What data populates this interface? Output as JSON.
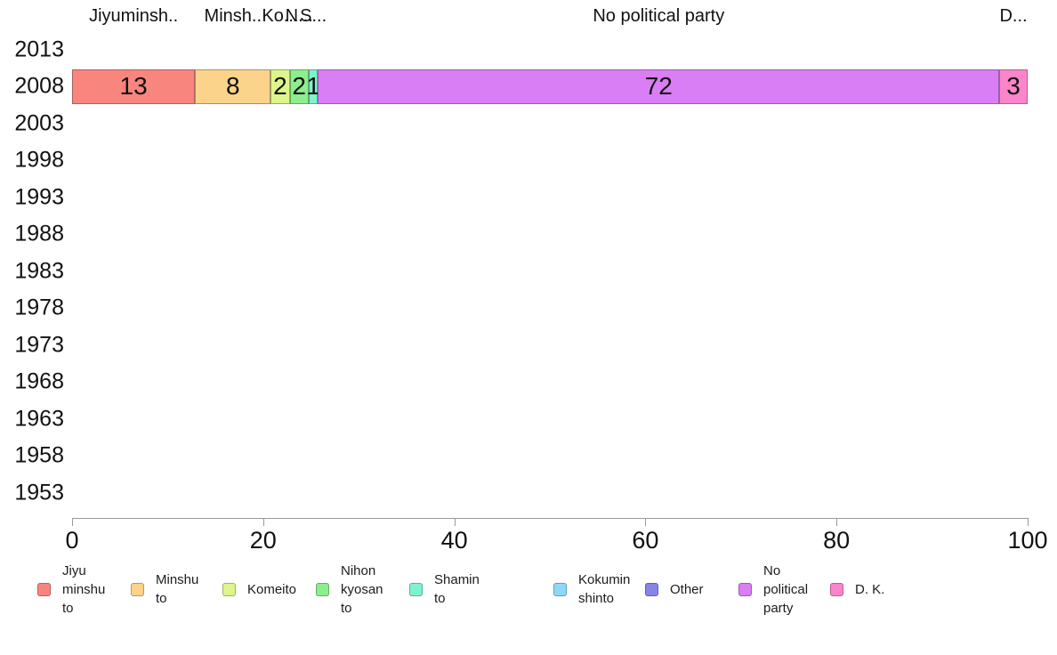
{
  "chart_data": {
    "type": "bar",
    "orientation": "horizontal",
    "stacked": true,
    "title": "",
    "data_row_year": "2008",
    "y_axis": {
      "categories": [
        "2013",
        "2008",
        "2003",
        "1998",
        "1993",
        "1988",
        "1983",
        "1978",
        "1973",
        "1968",
        "1963",
        "1958",
        "1953"
      ]
    },
    "x_axis": {
      "min": 0,
      "max": 100,
      "ticks": [
        "0",
        "20",
        "40",
        "60",
        "80",
        "100"
      ]
    },
    "segments": [
      {
        "party": "Jiyu minshu to",
        "value": 13,
        "color": "#f9867e",
        "top_label": "Jiyuminsh.."
      },
      {
        "party": "Minshu to",
        "value": 8,
        "color": "#fbd38b",
        "top_label": "Minsh.."
      },
      {
        "party": "Komeito",
        "value": 2,
        "color": "#def58b",
        "top_label": "Ko..."
      },
      {
        "party": "Nihon kyosan to",
        "value": 2,
        "color": "#8dee8d",
        "top_label": "N..."
      },
      {
        "party": "Shamin to",
        "value": 1,
        "color": "#7ef2d0",
        "top_label": "S..."
      },
      {
        "party": "No political party",
        "value": 72,
        "color": "#da7ef5",
        "top_label": "No political party"
      },
      {
        "party": "D. K.",
        "value": 3,
        "color": "#fa85cb",
        "top_label": "D..."
      }
    ],
    "legend": [
      {
        "label": "Jiyu minshu to",
        "lines": [
          "Jiyu",
          "minshu",
          "to"
        ],
        "color": "#f9867e"
      },
      {
        "label": "Minshu to",
        "lines": [
          "Minshu",
          "to"
        ],
        "color": "#fbd38b"
      },
      {
        "label": "Komeito",
        "lines": [
          "Komeito"
        ],
        "color": "#def58b"
      },
      {
        "label": "Nihon kyosan to",
        "lines": [
          "Nihon",
          "kyosan",
          "to"
        ],
        "color": "#8dee8d"
      },
      {
        "label": "Shamin to",
        "lines": [
          "Shamin",
          "to"
        ],
        "color": "#7ef2d0"
      },
      {
        "label": "Kokumin shinto",
        "lines": [
          "Kokumin",
          "shinto"
        ],
        "color": "#8dd8f8"
      },
      {
        "label": "Other",
        "lines": [
          "Other"
        ],
        "color": "#8585e8"
      },
      {
        "label": "No political party",
        "lines": [
          "No",
          "political",
          "party"
        ],
        "color": "#da7ef5"
      },
      {
        "label": "D. K.",
        "lines": [
          "D. K."
        ],
        "color": "#fa85cb"
      }
    ]
  }
}
